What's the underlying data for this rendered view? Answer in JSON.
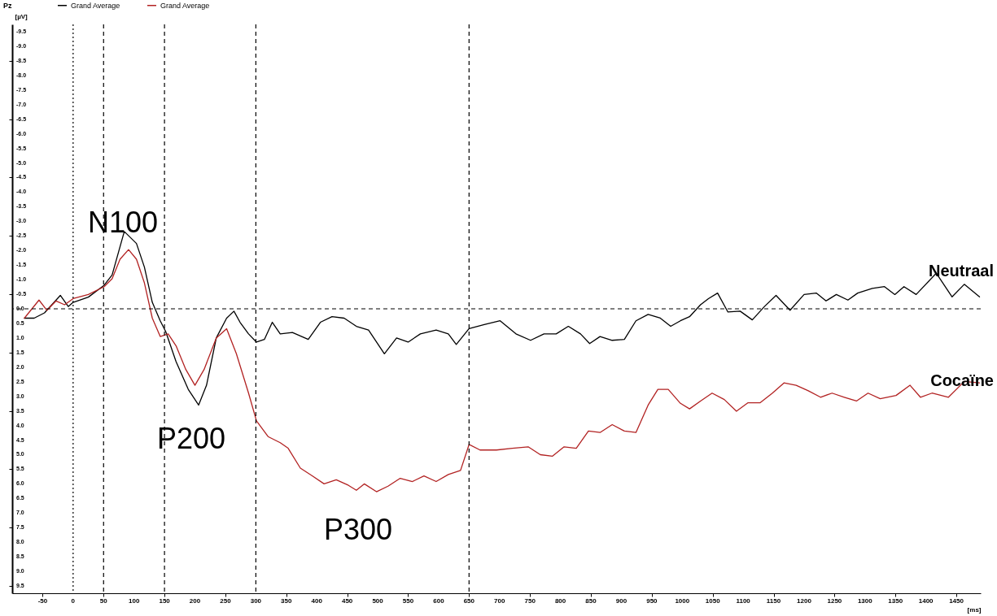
{
  "chart_data": {
    "type": "line",
    "title": "Pz",
    "xlabel": "[ms]",
    "ylabel": "[µV]",
    "xlim": [
      -100,
      1490
    ],
    "ylim": [
      9.75,
      -9.75
    ],
    "xticks": [
      -50,
      0,
      50,
      100,
      150,
      200,
      250,
      300,
      350,
      400,
      450,
      500,
      550,
      600,
      650,
      700,
      750,
      800,
      850,
      900,
      950,
      1000,
      1050,
      1100,
      1150,
      1200,
      1250,
      1300,
      1350,
      1400,
      1450
    ],
    "yticks": [
      -9.5,
      {
        "value": -9,
        "label": "-9.0"
      },
      -8.5,
      {
        "value": -8,
        "label": "-8.0"
      },
      -7.5,
      {
        "value": -7,
        "label": "-7.0"
      },
      -6.5,
      {
        "value": -6,
        "label": "-6.0"
      },
      -5.5,
      {
        "value": -5,
        "label": "-5.0"
      },
      -4.5,
      {
        "value": -4,
        "label": "-4.0"
      },
      -3.5,
      {
        "value": -3,
        "label": "-3.0"
      },
      -2.5,
      {
        "value": -2,
        "label": "-2.0"
      },
      -1.5,
      {
        "value": -1,
        "label": "-1.0"
      },
      -0.5,
      {
        "value": 0,
        "label": "0.0"
      },
      0.5,
      {
        "value": 1,
        "label": "1.0"
      },
      1.5,
      {
        "value": 2,
        "label": "2.0"
      },
      2.5,
      {
        "value": 3,
        "label": "3.0"
      },
      3.5,
      {
        "value": 4,
        "label": "4.0"
      },
      4.5,
      {
        "value": 5,
        "label": "5.0"
      },
      5.5,
      {
        "value": 6,
        "label": "6.0"
      },
      6.5,
      {
        "value": 7,
        "label": "7.0"
      },
      7.5,
      {
        "value": 8,
        "label": "8.0"
      },
      8.5,
      {
        "value": 9,
        "label": "9.0"
      },
      9.5
    ],
    "grid": false,
    "legend": "top left",
    "marker": "none",
    "line_style": "solid",
    "series": [
      {
        "name": "Grand Average",
        "color": "#000000",
        "x": [
          -80,
          -64,
          -47,
          -21,
          -8,
          0,
          25,
          51,
          64,
          84,
          104,
          117,
          130,
          143,
          152,
          169,
          189,
          206,
          219,
          235,
          252,
          264,
          274,
          288,
          301,
          314,
          327,
          340,
          360,
          386,
          406,
          425,
          445,
          465,
          485,
          511,
          531,
          550,
          570,
          596,
          616,
          629,
          650,
          675,
          701,
          727,
          751,
          773,
          793,
          813,
          833,
          848,
          865,
          885,
          905,
          924,
          944,
          964,
          981,
          997,
          1012,
          1030,
          1043,
          1058,
          1075,
          1095,
          1115,
          1135,
          1154,
          1177,
          1200,
          1220,
          1236,
          1253,
          1272,
          1288,
          1312,
          1332,
          1349,
          1364,
          1384,
          1417,
          1443,
          1463,
          1488
        ],
        "values": [
          0.32,
          0.32,
          0.14,
          -0.46,
          -0.08,
          -0.22,
          -0.4,
          -0.81,
          -1.16,
          -2.65,
          -2.24,
          -1.43,
          -0.22,
          0.41,
          0.78,
          1.81,
          2.76,
          3.3,
          2.62,
          1.0,
          0.32,
          0.08,
          0.46,
          0.86,
          1.14,
          1.05,
          0.46,
          0.86,
          0.81,
          1.05,
          0.46,
          0.27,
          0.32,
          0.6,
          0.73,
          1.54,
          1.0,
          1.14,
          0.86,
          0.73,
          0.86,
          1.22,
          0.68,
          0.54,
          0.41,
          0.86,
          1.08,
          0.86,
          0.86,
          0.6,
          0.86,
          1.19,
          0.95,
          1.08,
          1.05,
          0.41,
          0.19,
          0.32,
          0.6,
          0.41,
          0.27,
          -0.14,
          -0.35,
          -0.54,
          0.11,
          0.08,
          0.38,
          -0.08,
          -0.46,
          0.05,
          -0.49,
          -0.54,
          -0.27,
          -0.49,
          -0.3,
          -0.54,
          -0.7,
          -0.76,
          -0.49,
          -0.76,
          -0.49,
          -1.22,
          -0.41,
          -0.84,
          -0.41
        ]
      },
      {
        "name": "Grand Average",
        "color": "#b22222",
        "x": [
          -80,
          -56,
          -43,
          -28,
          -14,
          0,
          25,
          51,
          64,
          77,
          91,
          104,
          117,
          130,
          143,
          156,
          169,
          185,
          200,
          215,
          235,
          252,
          268,
          288,
          301,
          320,
          340,
          353,
          373,
          393,
          412,
          432,
          452,
          465,
          478,
          498,
          517,
          537,
          557,
          576,
          596,
          616,
          636,
          650,
          668,
          695,
          721,
          747,
          767,
          787,
          806,
          826,
          846,
          865,
          885,
          905,
          924,
          944,
          960,
          977,
          997,
          1012,
          1030,
          1049,
          1069,
          1089,
          1108,
          1128,
          1148,
          1167,
          1187,
          1207,
          1227,
          1246,
          1266,
          1286,
          1305,
          1325,
          1351,
          1374,
          1391,
          1410,
          1437,
          1463,
          1488
        ],
        "values": [
          0.32,
          -0.3,
          0.05,
          -0.27,
          -0.14,
          -0.35,
          -0.49,
          -0.76,
          -1.03,
          -1.7,
          -2.03,
          -1.7,
          -0.89,
          0.32,
          0.95,
          0.86,
          1.27,
          2.08,
          2.62,
          2.08,
          1.0,
          0.68,
          1.54,
          2.89,
          3.84,
          4.38,
          4.59,
          4.78,
          5.46,
          5.73,
          6.0,
          5.86,
          6.05,
          6.22,
          6.0,
          6.27,
          6.08,
          5.81,
          5.92,
          5.73,
          5.92,
          5.68,
          5.54,
          4.65,
          4.84,
          4.84,
          4.78,
          4.73,
          5.0,
          5.05,
          4.73,
          4.78,
          4.19,
          4.24,
          3.97,
          4.19,
          4.24,
          3.3,
          2.76,
          2.76,
          3.24,
          3.43,
          3.16,
          2.89,
          3.11,
          3.51,
          3.22,
          3.22,
          2.89,
          2.54,
          2.62,
          2.81,
          3.03,
          2.89,
          3.03,
          3.16,
          2.89,
          3.08,
          2.97,
          2.62,
          3.03,
          2.89,
          3.03,
          2.49,
          2.54
        ]
      }
    ],
    "ref_lines": [
      {
        "axis": "y",
        "value": 0,
        "line_style": "dashed"
      },
      {
        "axis": "x",
        "value": 0,
        "line_style": "dotted"
      },
      {
        "axis": "x",
        "value": 50,
        "line_style": "dashed"
      },
      {
        "axis": "x",
        "value": 150,
        "line_style": "dashed"
      },
      {
        "axis": "x",
        "value": 300,
        "line_style": "dashed"
      },
      {
        "axis": "x",
        "value": 650,
        "line_style": "dashed"
      }
    ],
    "annotations": [
      "N100",
      "P200",
      "P300",
      "Neutraal",
      "Cocaïne"
    ]
  }
}
